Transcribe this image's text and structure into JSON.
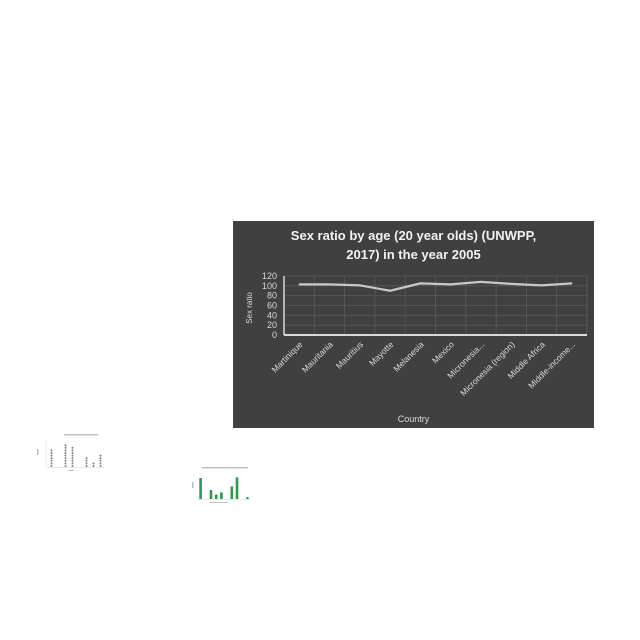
{
  "chart_data": [
    {
      "type": "line",
      "title": "Sex ratio by age (20 year olds) (UNWPP, 2017) in the year 2005",
      "title_lines": [
        "Sex ratio by age (20 year olds) (UNWPP,",
        "2017) in the year 2005"
      ],
      "xlabel": "Country",
      "ylabel": "Sex ratio",
      "categories": [
        "Martinique",
        "Mauritania",
        "Mauritius",
        "Mayotte",
        "Melanesia",
        "Mexico",
        "Micronesia...",
        "Micronesia (region)",
        "Middle Africa",
        "Middle-income..."
      ],
      "values": [
        103,
        103,
        101,
        90,
        105,
        103,
        108,
        104,
        101,
        105
      ],
      "yticks": [
        0,
        20,
        40,
        60,
        80,
        100,
        120
      ],
      "ylim": [
        0,
        120
      ],
      "grid": true,
      "legend": "none",
      "colors": {
        "background": "#404040",
        "line": "#c8c8c8",
        "text": "#d9d9d9",
        "grid": "#595959"
      }
    },
    {
      "type": "scatter",
      "categories": [
        "",
        "",
        "",
        "",
        "",
        "",
        "",
        ""
      ],
      "values": [
        7,
        0,
        9,
        8,
        0,
        4,
        2,
        5
      ],
      "colors": {
        "marker": "#7f7f7f"
      }
    },
    {
      "type": "bar",
      "categories": [
        "",
        "",
        "",
        "",
        "",
        "",
        "",
        "",
        "",
        ""
      ],
      "values": [
        70,
        0,
        30,
        15,
        22,
        0,
        42,
        72,
        0,
        6
      ],
      "colors": {
        "bar": "#2e9a4a"
      }
    }
  ]
}
